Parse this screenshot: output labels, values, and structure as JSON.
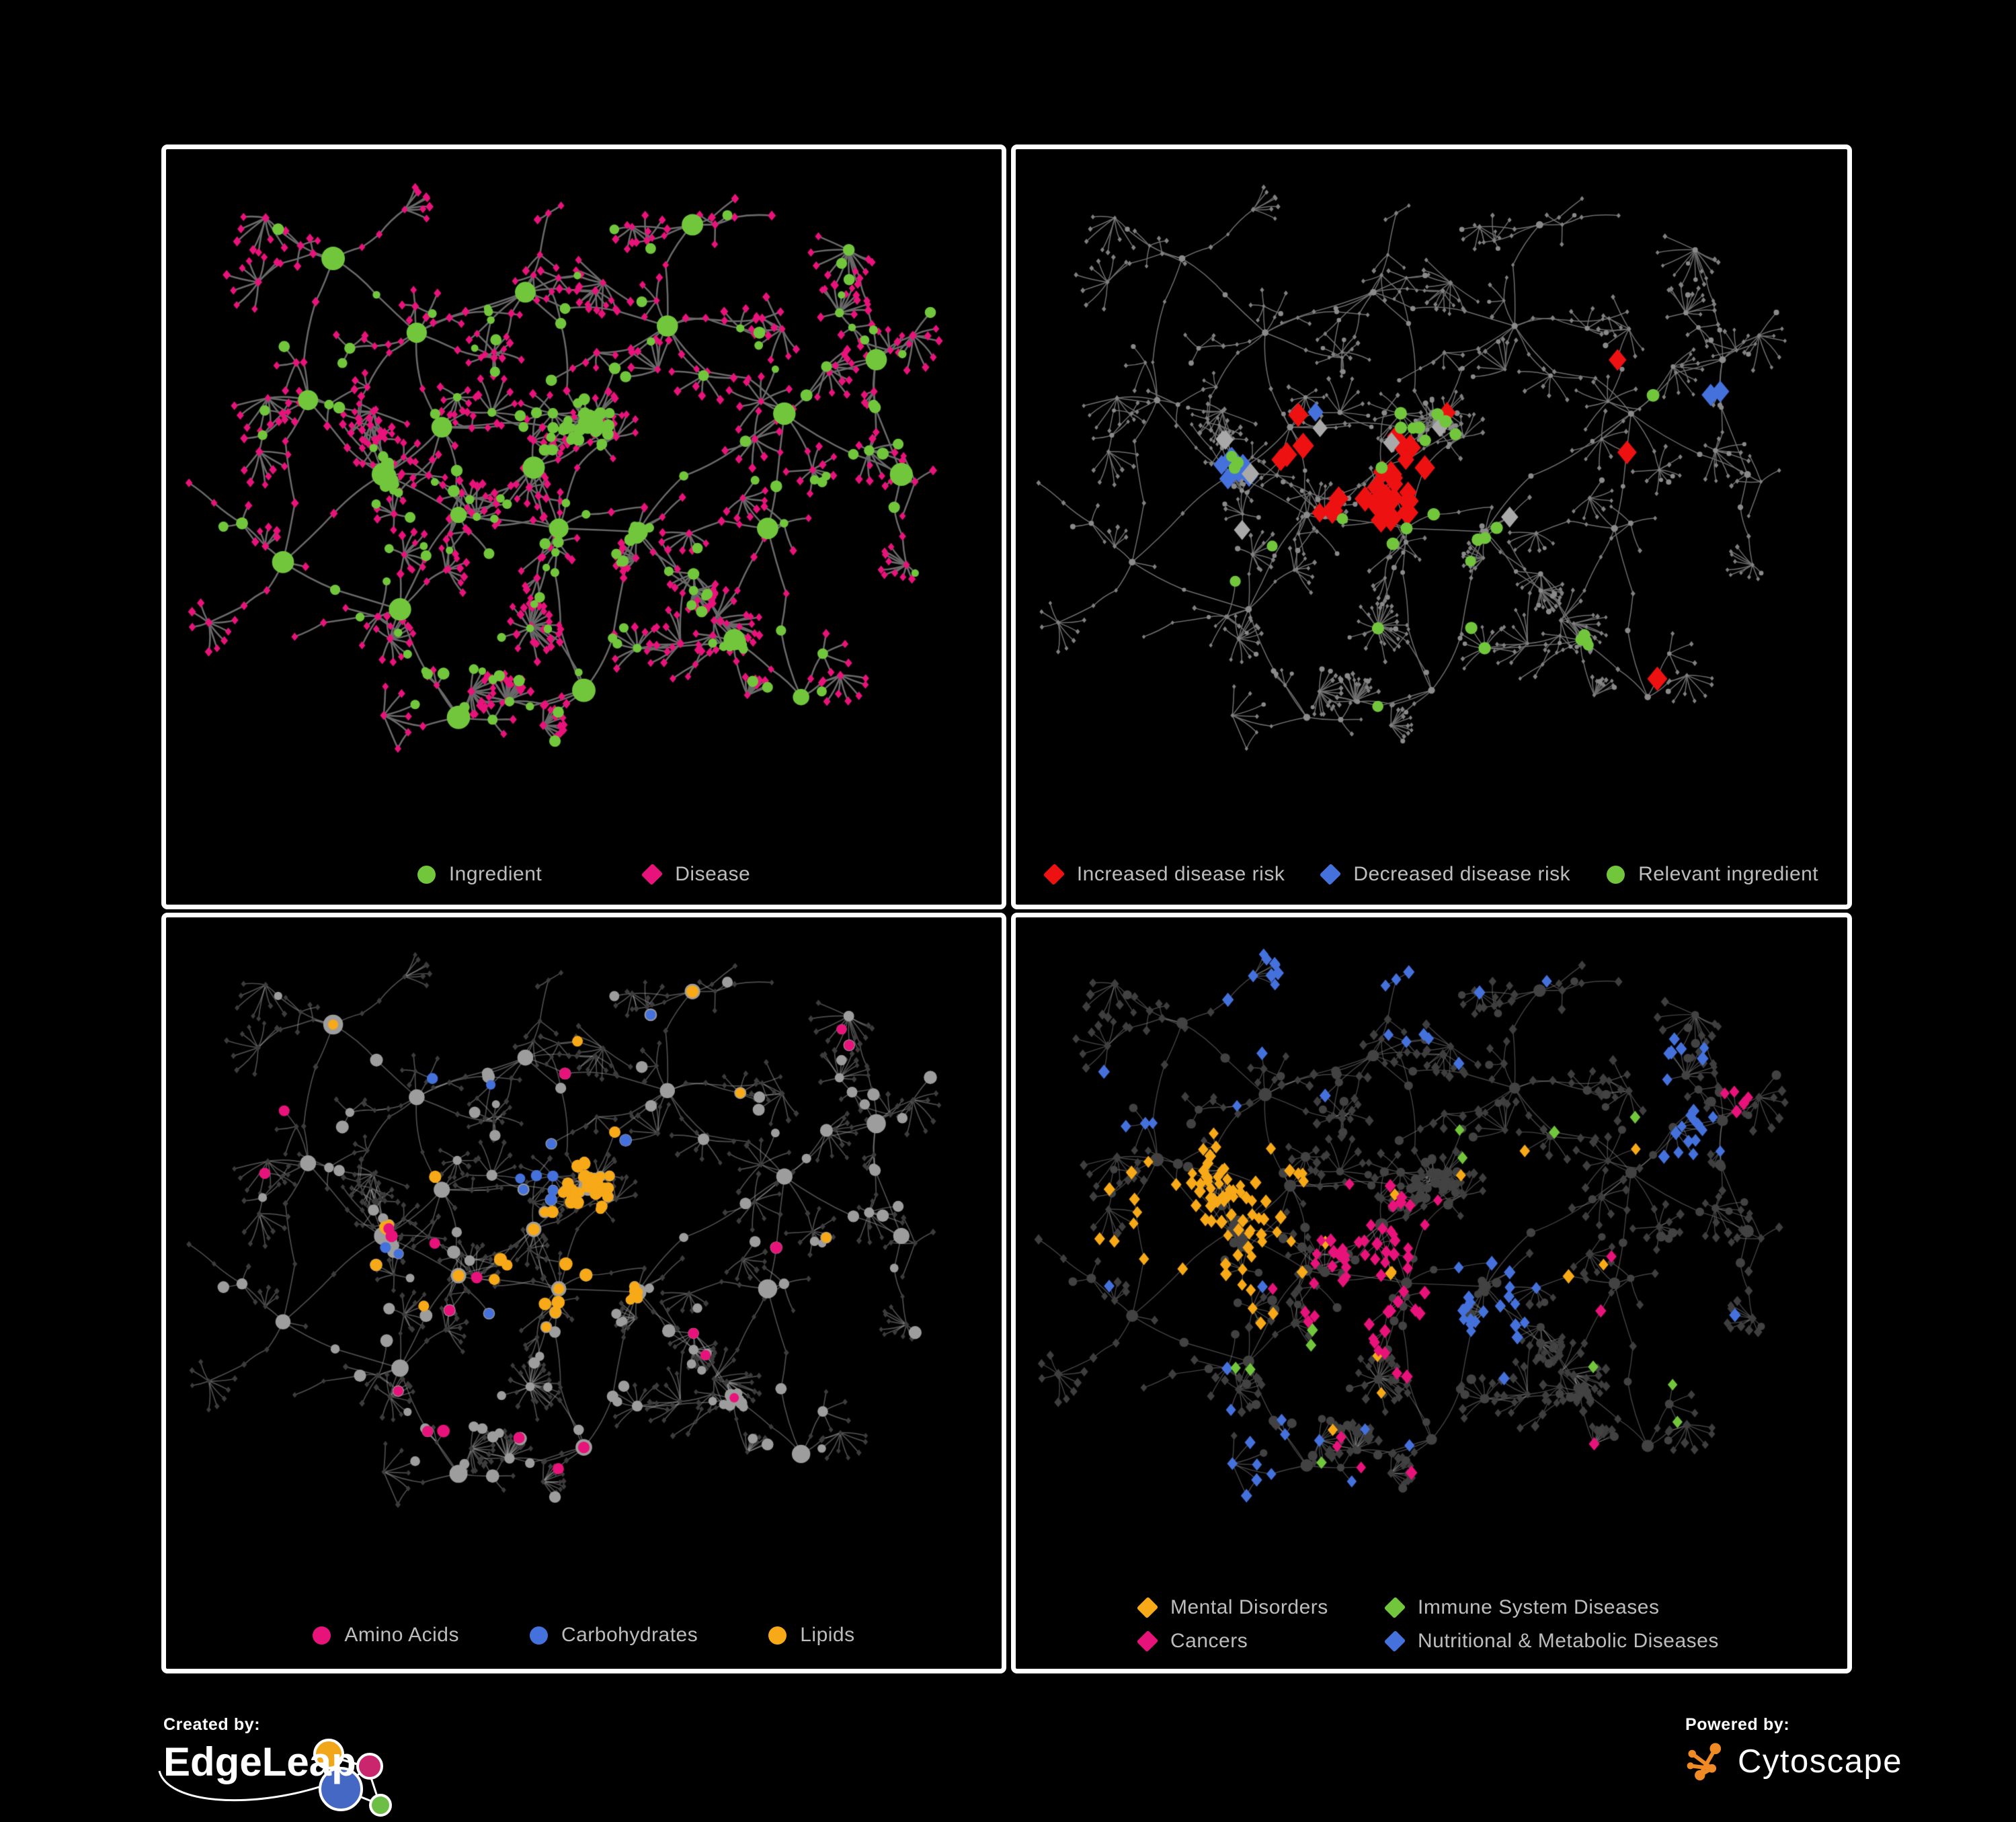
{
  "page": {
    "background": "#000000",
    "panel_border": "#FFFFFF"
  },
  "colors": {
    "ingredient_green": "#72C63C",
    "disease_pink": "#E8137A",
    "risk_red": "#ED1111",
    "risk_blue": "#4471DB",
    "neutral_gray": "#A9A9A9",
    "lipid_orange": "#F7A918",
    "light_gray_node": "#9D9D9D",
    "dark_gray_node": "#3C3C3C",
    "edge_gray": "#696969",
    "legend_text": "#BDBDBD"
  },
  "panels": [
    {
      "name": "ingredient-disease",
      "legend": [
        {
          "label": "Ingredient",
          "shape": "circle",
          "color": "#72C63C"
        },
        {
          "label": "Disease",
          "shape": "diamond",
          "color": "#E8137A"
        }
      ]
    },
    {
      "name": "disease-risk",
      "legend": [
        {
          "label": "Increased disease risk",
          "shape": "diamond",
          "color": "#ED1111"
        },
        {
          "label": "Decreased disease risk",
          "shape": "diamond",
          "color": "#4471DB"
        },
        {
          "label": "Relevant ingredient",
          "shape": "circle",
          "color": "#72C63C"
        }
      ]
    },
    {
      "name": "nutrient-classes",
      "legend": [
        {
          "label": "Amino Acids",
          "shape": "circle",
          "color": "#E8137A"
        },
        {
          "label": "Carbohydrates",
          "shape": "circle",
          "color": "#4471DB"
        },
        {
          "label": "Lipids",
          "shape": "circle",
          "color": "#F7A918"
        }
      ]
    },
    {
      "name": "disease-categories",
      "legend": [
        {
          "label": "Mental Disorders",
          "shape": "diamond",
          "color": "#F7A918"
        },
        {
          "label": "Immune System Diseases",
          "shape": "diamond",
          "color": "#72C63C"
        },
        {
          "label": "Cancers",
          "shape": "diamond",
          "color": "#E8137A"
        },
        {
          "label": "Nutritional & Metabolic Diseases",
          "shape": "diamond",
          "color": "#4471DB"
        }
      ]
    }
  ],
  "branding": {
    "created_by": {
      "label": "Created by:",
      "name": "EdgeLeap",
      "logo_colors": {
        "orange": "#F2A71B",
        "pink": "#C9266E",
        "blue": "#4468C4",
        "green": "#6CBE45"
      }
    },
    "powered_by": {
      "label": "Powered by:",
      "name": "Cytoscape",
      "logo_color": "#F08A24"
    }
  },
  "chart_data": {
    "type": "network",
    "description": "Four styled views of the same ingredient-disease association network (~950 nodes). Ingredients are circles, diseases are diamonds, edges are ingredient-disease associations drawn as curved gray links on black panels.",
    "views": [
      {
        "panel": "ingredient-disease",
        "node_classes": [
          {
            "label": "Ingredient",
            "shape": "circle",
            "color": "#72C63C"
          },
          {
            "label": "Disease",
            "shape": "diamond",
            "color": "#E8137A"
          }
        ]
      },
      {
        "panel": "disease-risk",
        "node_classes": [
          {
            "label": "Increased disease risk",
            "shape": "diamond",
            "color": "#ED1111",
            "approx_count": 32
          },
          {
            "label": "Decreased disease risk",
            "shape": "diamond",
            "color": "#4471DB",
            "approx_count": 10
          },
          {
            "label": "Relevant ingredient",
            "shape": "circle",
            "color": "#72C63C",
            "approx_count": 30
          },
          {
            "label": "unlabeled neutral association",
            "shape": "diamond",
            "color": "#A9A9A9",
            "approx_count": 8
          }
        ]
      },
      {
        "panel": "nutrient-classes",
        "node_classes": [
          {
            "label": "Amino Acids",
            "shape": "circle",
            "color": "#E8137A",
            "approx_count": 20
          },
          {
            "label": "Carbohydrates",
            "shape": "circle",
            "color": "#4471DB",
            "approx_count": 14
          },
          {
            "label": "Lipids",
            "shape": "circle",
            "color": "#F7A918",
            "approx_count": 62
          }
        ]
      },
      {
        "panel": "disease-categories",
        "node_classes": [
          {
            "label": "Mental Disorders",
            "shape": "diamond",
            "color": "#F7A918",
            "approx_count": 95
          },
          {
            "label": "Immune System Diseases",
            "shape": "diamond",
            "color": "#72C63C",
            "approx_count": 12
          },
          {
            "label": "Cancers",
            "shape": "diamond",
            "color": "#E8137A",
            "approx_count": 70
          },
          {
            "label": "Nutritional & Metabolic Diseases",
            "shape": "diamond",
            "color": "#4471DB",
            "approx_count": 98
          }
        ]
      }
    ],
    "render": {
      "seed": 77,
      "space": [
        1240,
        1000
      ],
      "cross": 50,
      "anchors": [
        [
          0.26,
          0.47,
          0.75,
          7,
          0.55,
          0
        ],
        [
          0.33,
          0.4,
          0.75,
          5,
          0.5,
          0
        ],
        [
          0.35,
          0.53,
          0.8,
          5,
          0.55,
          0
        ],
        [
          0.44,
          0.46,
          0.8,
          6,
          0.5,
          0
        ],
        [
          0.505,
          0.395,
          0.6,
          4,
          0.4,
          0
        ],
        [
          0.47,
          0.55,
          0.85,
          5,
          0.6,
          0
        ],
        [
          0.565,
          0.555,
          0.8,
          5,
          0.8,
          2
        ],
        [
          0.5,
          0.79,
          0.9,
          2,
          1.0,
          8
        ],
        [
          0.68,
          0.715,
          0.85,
          5,
          0.85,
          3
        ],
        [
          0.6,
          0.25,
          1.0,
          4,
          0.6,
          0
        ],
        [
          0.43,
          0.2,
          1.0,
          4,
          0.65,
          0
        ],
        [
          0.3,
          0.26,
          1.0,
          4,
          0.6,
          0
        ],
        [
          0.17,
          0.36,
          0.95,
          3,
          0.6,
          0
        ],
        [
          0.14,
          0.6,
          0.95,
          3,
          0.65,
          0
        ],
        [
          0.28,
          0.67,
          0.9,
          5,
          0.8,
          1
        ],
        [
          0.35,
          0.83,
          0.9,
          3,
          0.7,
          0
        ],
        [
          0.74,
          0.38,
          1.0,
          4,
          0.65,
          0
        ],
        [
          0.85,
          0.3,
          0.9,
          5,
          0.85,
          2
        ],
        [
          0.88,
          0.47,
          0.85,
          3,
          0.7,
          0
        ],
        [
          0.72,
          0.55,
          0.9,
          3,
          0.6,
          0
        ],
        [
          0.76,
          0.8,
          0.85,
          2,
          0.7,
          0
        ],
        [
          0.63,
          0.1,
          0.95,
          3,
          0.6,
          0
        ],
        [
          0.2,
          0.15,
          0.95,
          2,
          0.7,
          0
        ]
      ],
      "balls": [
        [
          0.505,
          0.395,
          26,
          0.032
        ],
        [
          0.262,
          0.472,
          9,
          0.018
        ],
        [
          0.565,
          0.555,
          6,
          0.015
        ],
        [
          0.685,
          0.715,
          5,
          0.014
        ]
      ],
      "panels": [
        {
          "seed": 101,
          "bottomPad": 120,
          "edge": "#696969",
          "ew": 2.6,
          "ing": {
            "color": "#72C63C",
            "r": [
              5.5,
              9
            ],
            "rHub": [
              12,
              18
            ],
            "rBall": [
              6.5,
              9.5
            ]
          },
          "dis": {
            "color": "#E8137A",
            "r": [
              5.8,
              7.4
            ]
          },
          "highlights": []
        },
        {
          "seed": 913,
          "bottomPad": 120,
          "edge": "#6E6E6E",
          "ew": 1.5,
          "ing": {
            "color": "#8A8A8A",
            "r": [
              3.0,
              4.2
            ],
            "rHub": [
              4.5,
              5.5
            ],
            "rBall": [
              3.0,
              4.2
            ]
          },
          "dis": {
            "color": "#808080",
            "r": [
              3.2,
              4.4
            ]
          },
          "highlights": [
            {
              "target": "d",
              "shape": "diamond",
              "color": "#ED1111",
              "size": [
                13,
                19
              ],
              "blobs": [
                [
                  0.46,
                  0.49,
                  0.1,
                  20
                ],
                [
                  0.33,
                  0.42,
                  0.05,
                  4
                ]
              ],
              "scatter": {
                "region": [
                  0.28,
                  0.28,
                  0.52,
                  0.5
                ],
                "count": 8
              }
            },
            {
              "target": "d",
              "shape": "diamond",
              "color": "#4471DB",
              "size": [
                12,
                16
              ],
              "blobs": [
                [
                  0.265,
                  0.46,
                  0.055,
                  7
                ],
                [
                  0.84,
                  0.345,
                  0.02,
                  2
                ]
              ],
              "scatter": {
                "region": [
                  0.25,
                  0.35,
                  0.2,
                  0.2
                ],
                "count": 1
              }
            },
            {
              "target": "d",
              "shape": "diamond",
              "color": "#A9A9A9",
              "size": [
                12,
                15
              ],
              "blobs": [],
              "scatter": {
                "region": [
                  0.2,
                  0.38,
                  0.42,
                  0.25
                ],
                "count": 8
              }
            },
            {
              "target": "i",
              "shape": "circle",
              "color": "#72C63C",
              "size": [
                8,
                9.5
              ],
              "blobs": [
                [
                  0.7,
                  0.7,
                  0.045,
                  4
                ],
                [
                  0.8,
                  0.36,
                  0.02,
                  1
                ]
              ],
              "scatter": {
                "region": [
                  0.25,
                  0.33,
                  0.38,
                  0.33
                ],
                "count": 22
              }
            },
            {
              "target": "i",
              "shape": "circle",
              "color": "#72C63C",
              "size": [
                8,
                9.5
              ],
              "blobs": [],
              "scatter": {
                "region": [
                  0.42,
                  0.68,
                  0.33,
                  0.14
                ],
                "count": 4
              }
            }
          ]
        },
        {
          "seed": 414,
          "bottomPad": 135,
          "edge": "rgba(170,170,170,0.45)",
          "ew": 1.7,
          "ing": {
            "color": "#9D9D9D",
            "r": [
              6,
              10
            ],
            "rHub": [
              11,
              15
            ],
            "rBall": [
              6.5,
              9
            ]
          },
          "dis": {
            "color": "#3C3C3C",
            "r": [
              4.0,
              5.2
            ]
          },
          "highlights": [
            {
              "target": "i",
              "shape": "circle",
              "color": "#F7A918",
              "size": [
                7,
                10
              ],
              "blobs": [
                [
                  0.505,
                  0.395,
                  0.055,
                  30
                ],
                [
                  0.44,
                  0.5,
                  0.09,
                  12
                ],
                [
                  0.565,
                  0.555,
                  0.02,
                  5
                ]
              ],
              "scatter": {
                "region": [
                  0.2,
                  0.06,
                  0.6,
                  0.6
                ],
                "count": 15
              }
            },
            {
              "target": "i",
              "shape": "circle",
              "color": "#4471DB",
              "size": [
                7,
                9
              ],
              "blobs": [
                [
                  0.505,
                  0.395,
                  0.05,
                  8
                ]
              ],
              "scatter": {
                "region": [
                  0.05,
                  0.05,
                  0.7,
                  0.55
                ],
                "count": 6
              }
            },
            {
              "target": "i",
              "shape": "circle",
              "color": "#E8137A",
              "size": [
                7,
                9.5
              ],
              "blobs": [],
              "scatter": {
                "region": [
                  0.08,
                  0.15,
                  0.8,
                  0.68
                ],
                "count": 20
              }
            }
          ]
        },
        {
          "seed": 551,
          "bottomPad": 150,
          "edge": "rgba(160,160,160,0.42)",
          "ew": 1.4,
          "ing": {
            "color": "#424242",
            "r": [
              5.5,
              7.5
            ],
            "rHub": [
              8,
              10
            ],
            "rBall": [
              5.5,
              7.5
            ]
          },
          "dis": {
            "color": "#3E3E3E",
            "r": [
              6,
              8
            ]
          },
          "highlights": [
            {
              "target": "d",
              "shape": "diamond",
              "color": "#F7A918",
              "size": [
                8,
                10
              ],
              "blobs": [
                [
                  0.235,
                  0.465,
                  0.105,
                  85
                ]
              ],
              "scatter": {
                "region": [
                  0.15,
                  0.05,
                  0.6,
                  0.75
                ],
                "count": 12
              }
            },
            {
              "target": "d",
              "shape": "diamond",
              "color": "#E8137A",
              "size": [
                8,
                10
              ],
              "blobs": [
                [
                  0.44,
                  0.53,
                  0.1,
                  55
                ],
                [
                  0.87,
                  0.27,
                  0.035,
                  5
                ]
              ],
              "scatter": {
                "region": [
                  0.3,
                  0.5,
                  0.5,
                  0.35
                ],
                "count": 10
              }
            },
            {
              "target": "d",
              "shape": "diamond",
              "color": "#4471DB",
              "size": [
                8,
                10
              ],
              "blobs": [
                [
                  0.56,
                  0.575,
                  0.045,
                  22
                ],
                [
                  0.8,
                  0.33,
                  0.06,
                  12
                ],
                [
                  0.78,
                  0.2,
                  0.05,
                  8
                ],
                [
                  0.3,
                  0.115,
                  0.1,
                  10
                ],
                [
                  0.47,
                  0.075,
                  0.05,
                  6
                ],
                [
                  0.13,
                  0.28,
                  0.04,
                  4
                ],
                [
                  0.3,
                  0.84,
                  0.06,
                  8
                ]
              ],
              "scatter": {
                "region": [
                  0.1,
                  0.05,
                  0.85,
                  0.85
                ],
                "count": 18
              }
            },
            {
              "target": "d",
              "shape": "diamond",
              "color": "#72C63C",
              "size": [
                8,
                9.5
              ],
              "blobs": [],
              "scatter": {
                "region": [
                  0.25,
                  0.25,
                  0.55,
                  0.6
                ],
                "count": 12
              }
            }
          ]
        }
      ]
    }
  }
}
